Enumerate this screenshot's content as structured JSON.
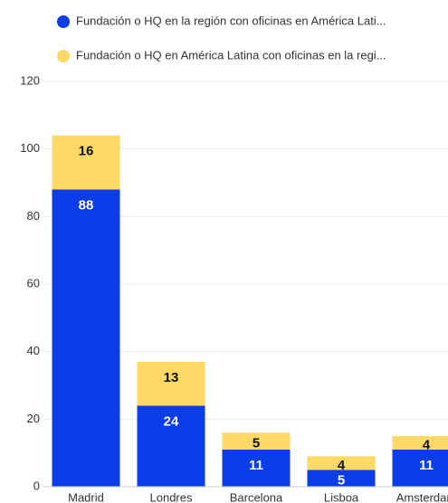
{
  "chart_data": {
    "type": "stacked_bar",
    "categories": [
      "Madrid",
      "Londres",
      "Barcelona",
      "Lisboa",
      "Amsterdam"
    ],
    "series": [
      {
        "name": "Fundación o HQ en la región con oficinas en América Lati...",
        "color": "#0a3de8",
        "values": [
          88,
          24,
          11,
          5,
          11
        ]
      },
      {
        "name": "Fundación o HQ en América Latina con oficinas en la regi...",
        "color": "#ffd966",
        "values": [
          16,
          13,
          5,
          4,
          4
        ]
      }
    ],
    "ylim": [
      0,
      120
    ],
    "yticks": [
      0,
      20,
      40,
      60,
      80,
      100,
      120
    ],
    "grid": true,
    "legend": "top"
  }
}
